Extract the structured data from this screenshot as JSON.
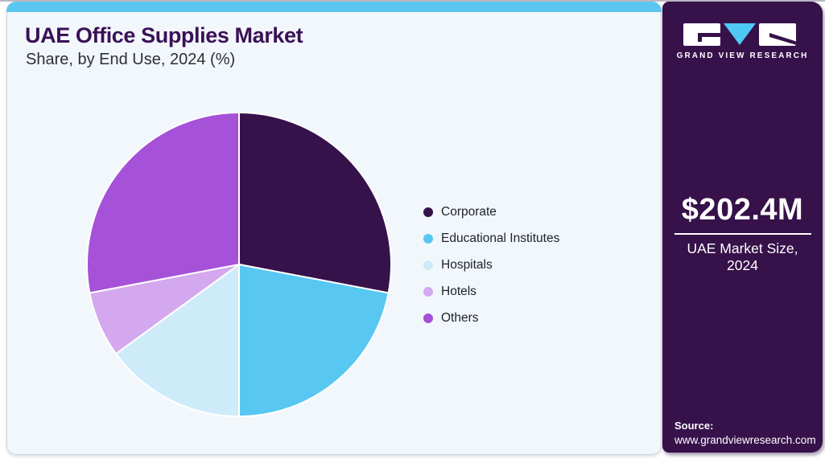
{
  "page": {
    "page_bg": "#ffffff",
    "card_bg": "#f2f7fb",
    "card_border": "#ccd7de",
    "top_accent_color": "#5bc6f0",
    "title_color": "#3a1157"
  },
  "header": {
    "title": "UAE Office Supplies Market",
    "subtitle": "Share, by End Use, 2024 (%)"
  },
  "chart_data": {
    "type": "pie",
    "title": "UAE Office Supplies Market Share, by End Use, 2024 (%)",
    "unit": "percent",
    "start_angle_deg": 0,
    "direction": "clockwise",
    "legend_position": "right",
    "slices": [
      {
        "label": "Corporate",
        "value": 28,
        "color": "#36124b"
      },
      {
        "label": "Educational Institutes",
        "value": 22,
        "color": "#58c7f2"
      },
      {
        "label": "Hospitals",
        "value": 15,
        "color": "#cdebf9"
      },
      {
        "label": "Hotels",
        "value": 7,
        "color": "#d4a8ee"
      },
      {
        "label": "Others",
        "value": 28,
        "color": "#a551d8"
      }
    ]
  },
  "sidebar": {
    "bg_color": "#36114a",
    "logo": {
      "brand": "GRAND VIEW RESEARCH",
      "triangle_color": "#4ec9f5"
    },
    "market_size": {
      "value": "$202.4M",
      "label_line1": "UAE Market Size,",
      "label_line2": "2024"
    },
    "source": {
      "label": "Source:",
      "url": "www.grandviewresearch.com"
    }
  }
}
